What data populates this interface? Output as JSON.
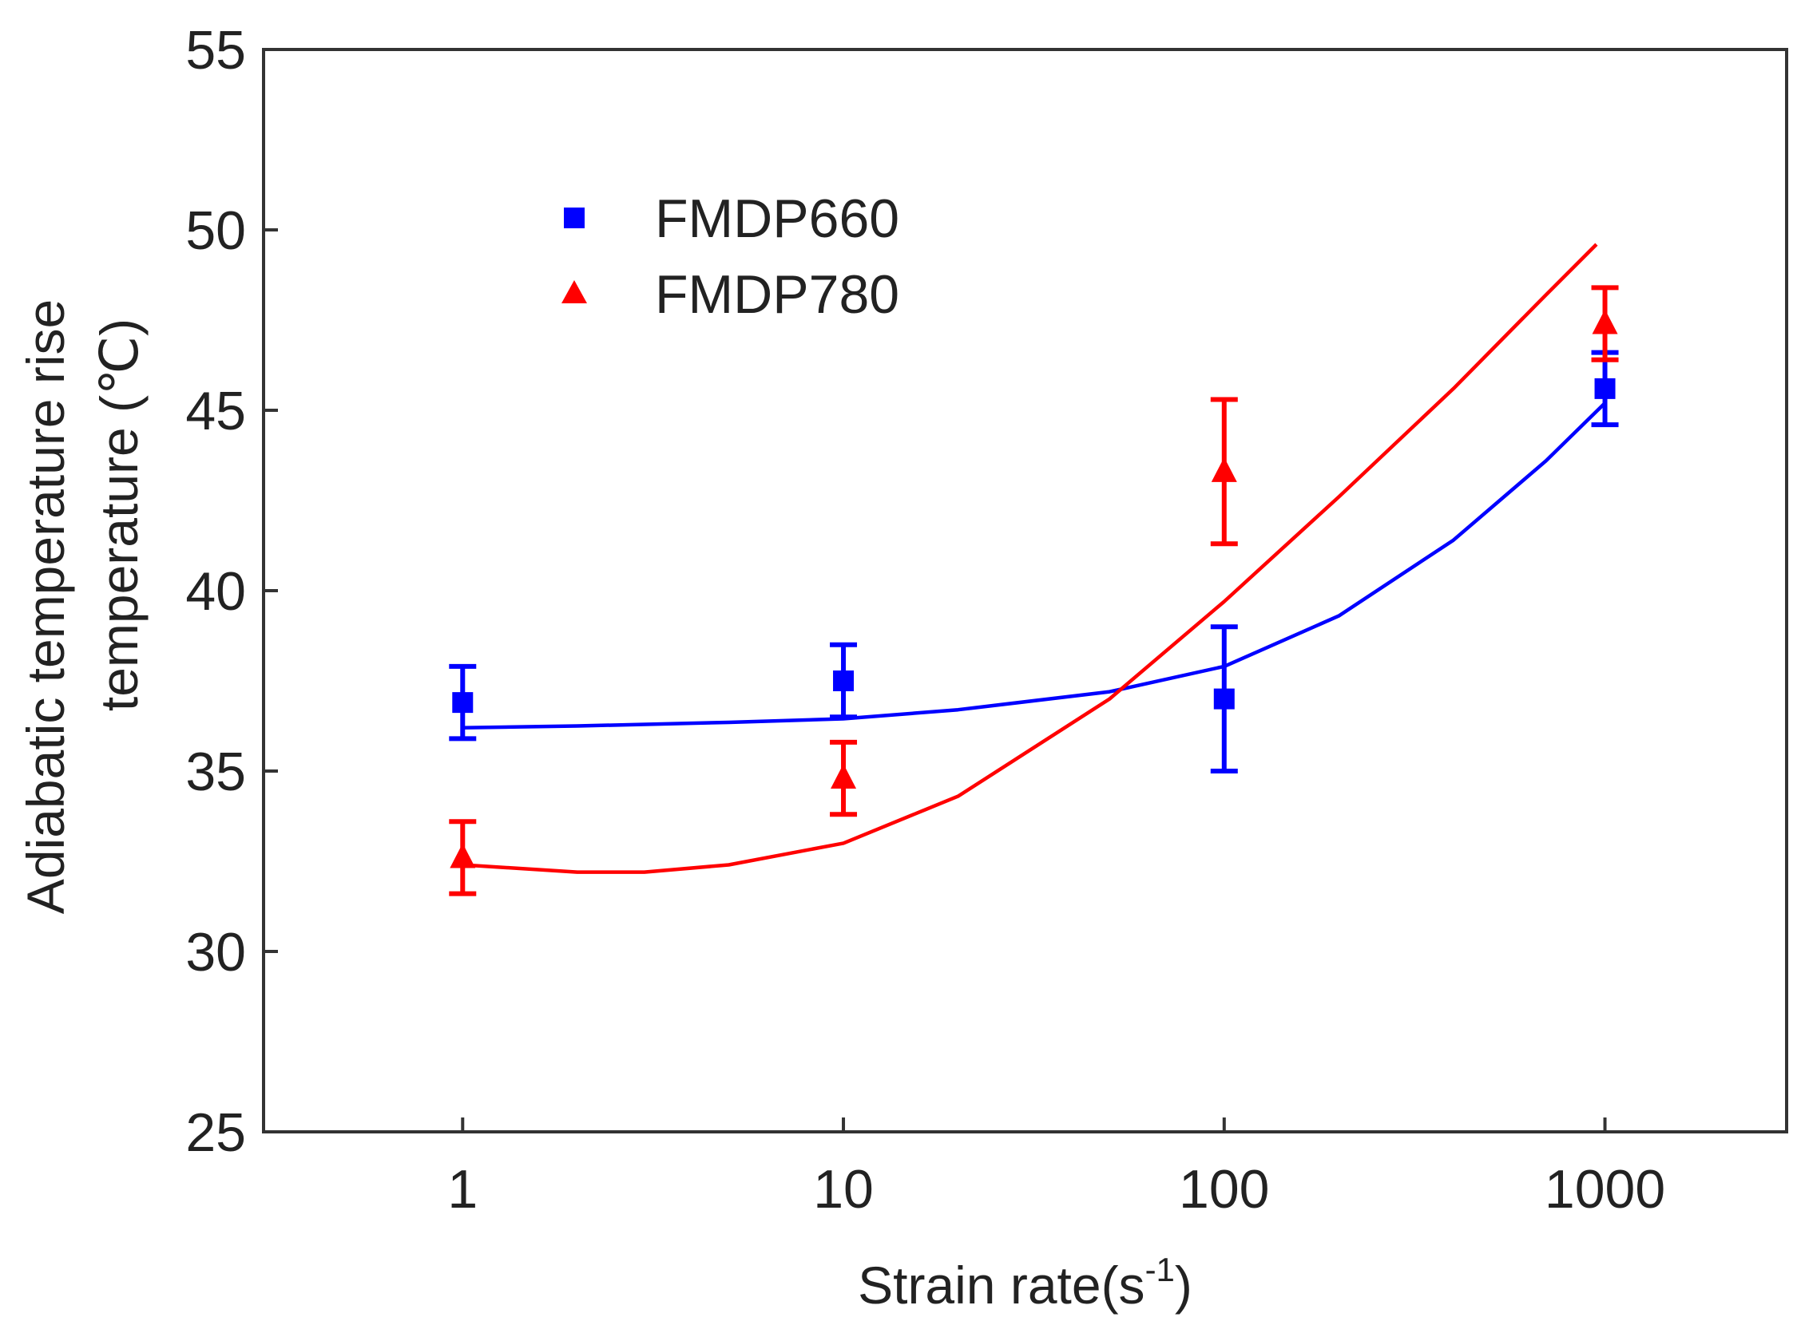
{
  "chart_data": {
    "type": "scatter",
    "title": "",
    "xlabel": "Strain rate(s",
    "xlabel_sup": "-1",
    "xlabel_suffix": ")",
    "ylabel_line1": "Adiabatic temperature rise",
    "ylabel_line2": "temperature (℃)",
    "x_scale": "log",
    "xlim": [
      0.3,
      3000
    ],
    "ylim": [
      25,
      55
    ],
    "x_ticks": [
      1,
      10,
      100,
      1000
    ],
    "x_tick_labels": [
      "1",
      "10",
      "100",
      "1000"
    ],
    "y_ticks": [
      25,
      30,
      35,
      40,
      45,
      50,
      55
    ],
    "y_tick_labels": [
      "25",
      "30",
      "35",
      "40",
      "45",
      "50",
      "55"
    ],
    "grid": false,
    "legend_position": "top-left",
    "series": [
      {
        "name": "FMDP660",
        "color": "#0000ff",
        "marker": "square",
        "x": [
          1,
          10,
          100,
          1000
        ],
        "y": [
          36.9,
          37.5,
          37.0,
          45.6
        ],
        "err": [
          1.0,
          1.0,
          2.0,
          1.0
        ],
        "fit_x": [
          1,
          2,
          5,
          10,
          20,
          50,
          100,
          200,
          400,
          700,
          1000
        ],
        "fit_y": [
          36.2,
          36.25,
          36.35,
          36.45,
          36.7,
          37.2,
          37.9,
          39.3,
          41.4,
          43.6,
          45.2
        ]
      },
      {
        "name": "FMDP780",
        "color": "#ff0000",
        "marker": "triangle",
        "x": [
          1,
          10,
          100,
          1000
        ],
        "y": [
          32.6,
          34.8,
          43.3,
          47.4
        ],
        "err": [
          1.0,
          1.0,
          2.0,
          1.0
        ],
        "fit_x": [
          1,
          2,
          3,
          5,
          10,
          20,
          50,
          100,
          200,
          400,
          700,
          950
        ],
        "fit_y": [
          32.4,
          32.2,
          32.2,
          32.4,
          33.0,
          34.3,
          37.0,
          39.7,
          42.6,
          45.6,
          48.2,
          49.6
        ]
      }
    ]
  }
}
